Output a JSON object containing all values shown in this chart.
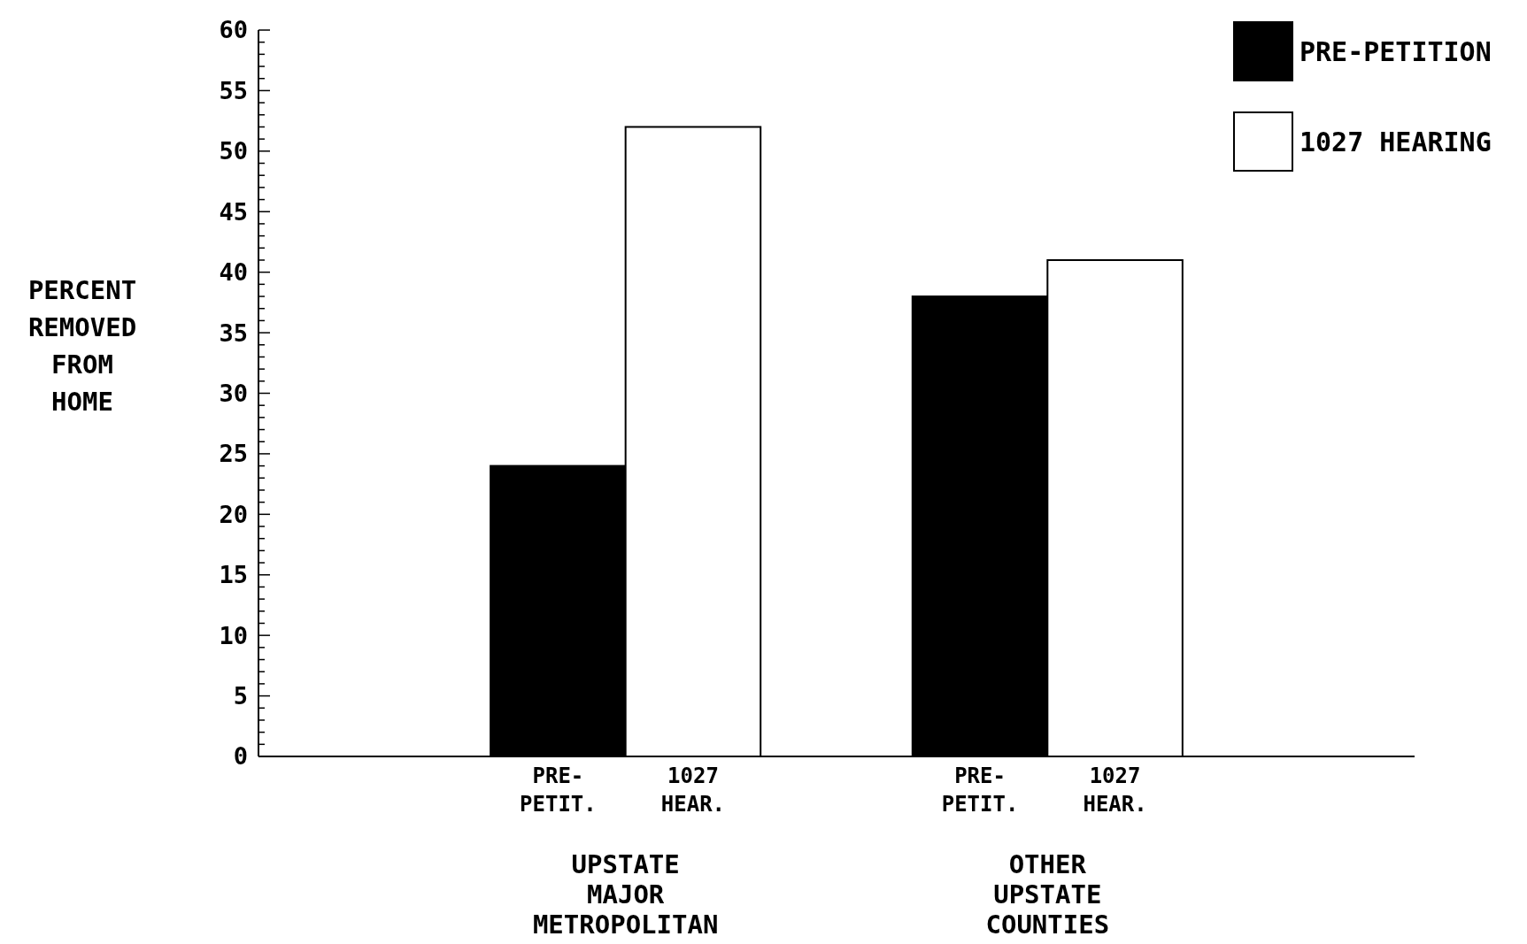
{
  "chart_data": {
    "type": "bar",
    "ylabel": "PERCENT REMOVED FROM HOME",
    "categories": [
      "UPSTATE MAJOR METROPOLITAN",
      "OTHER UPSTATE COUNTIES"
    ],
    "series": [
      {
        "name": "PRE-PETITION",
        "color": "#000000",
        "values": [
          24,
          38
        ]
      },
      {
        "name": "1027 HEARING",
        "color": "#ffffff",
        "values": [
          52,
          41
        ]
      }
    ],
    "annotations": [
      "PRE-PETIT.",
      "1027 HEAR.",
      "PRE-PETIT.",
      "1027 HEAR."
    ],
    "ylim": [
      0,
      60
    ],
    "yticks": [
      0,
      {
        "value": 1,
        "label": null
      },
      {
        "value": 2,
        "label": null
      },
      {
        "value": 3,
        "label": null
      },
      {
        "value": 4,
        "label": null
      },
      5,
      {
        "value": 6,
        "label": null
      },
      {
        "value": 7,
        "label": null
      },
      {
        "value": 8,
        "label": null
      },
      {
        "value": 9,
        "label": null
      },
      10,
      {
        "value": 11,
        "label": null
      },
      {
        "value": 12,
        "label": null
      },
      {
        "value": 13,
        "label": null
      },
      {
        "value": 14,
        "label": null
      },
      15,
      {
        "value": 16,
        "label": null
      },
      {
        "value": 17,
        "label": null
      },
      {
        "value": 18,
        "label": null
      },
      {
        "value": 19,
        "label": null
      },
      20,
      {
        "value": 21,
        "label": null
      },
      {
        "value": 22,
        "label": null
      },
      {
        "value": 23,
        "label": null
      },
      {
        "value": 24,
        "label": null
      },
      25,
      {
        "value": 26,
        "label": null
      },
      {
        "value": 27,
        "label": null
      },
      {
        "value": 28,
        "label": null
      },
      {
        "value": 29,
        "label": null
      },
      30,
      {
        "value": 31,
        "label": null
      },
      {
        "value": 32,
        "label": null
      },
      {
        "value": 33,
        "label": null
      },
      {
        "value": 34,
        "label": null
      },
      35,
      {
        "value": 36,
        "label": null
      },
      {
        "value": 37,
        "label": null
      },
      {
        "value": 38,
        "label": null
      },
      {
        "value": 39,
        "label": null
      },
      40,
      {
        "value": 41,
        "label": null
      },
      {
        "value": 42,
        "label": null
      },
      {
        "value": 43,
        "label": null
      },
      {
        "value": 44,
        "label": null
      },
      45,
      {
        "value": 46,
        "label": null
      },
      {
        "value": 47,
        "label": null
      },
      {
        "value": 48,
        "label": null
      },
      {
        "value": 49,
        "label": null
      },
      50,
      {
        "value": 51,
        "label": null
      },
      {
        "value": 52,
        "label": null
      },
      {
        "value": 53,
        "label": null
      },
      {
        "value": 54,
        "label": null
      },
      55,
      {
        "value": 56,
        "label": null
      },
      {
        "value": 57,
        "label": null
      },
      {
        "value": 58,
        "label": null
      },
      {
        "value": 59,
        "label": null
      },
      60
    ],
    "grid": false,
    "legend": "top right"
  }
}
